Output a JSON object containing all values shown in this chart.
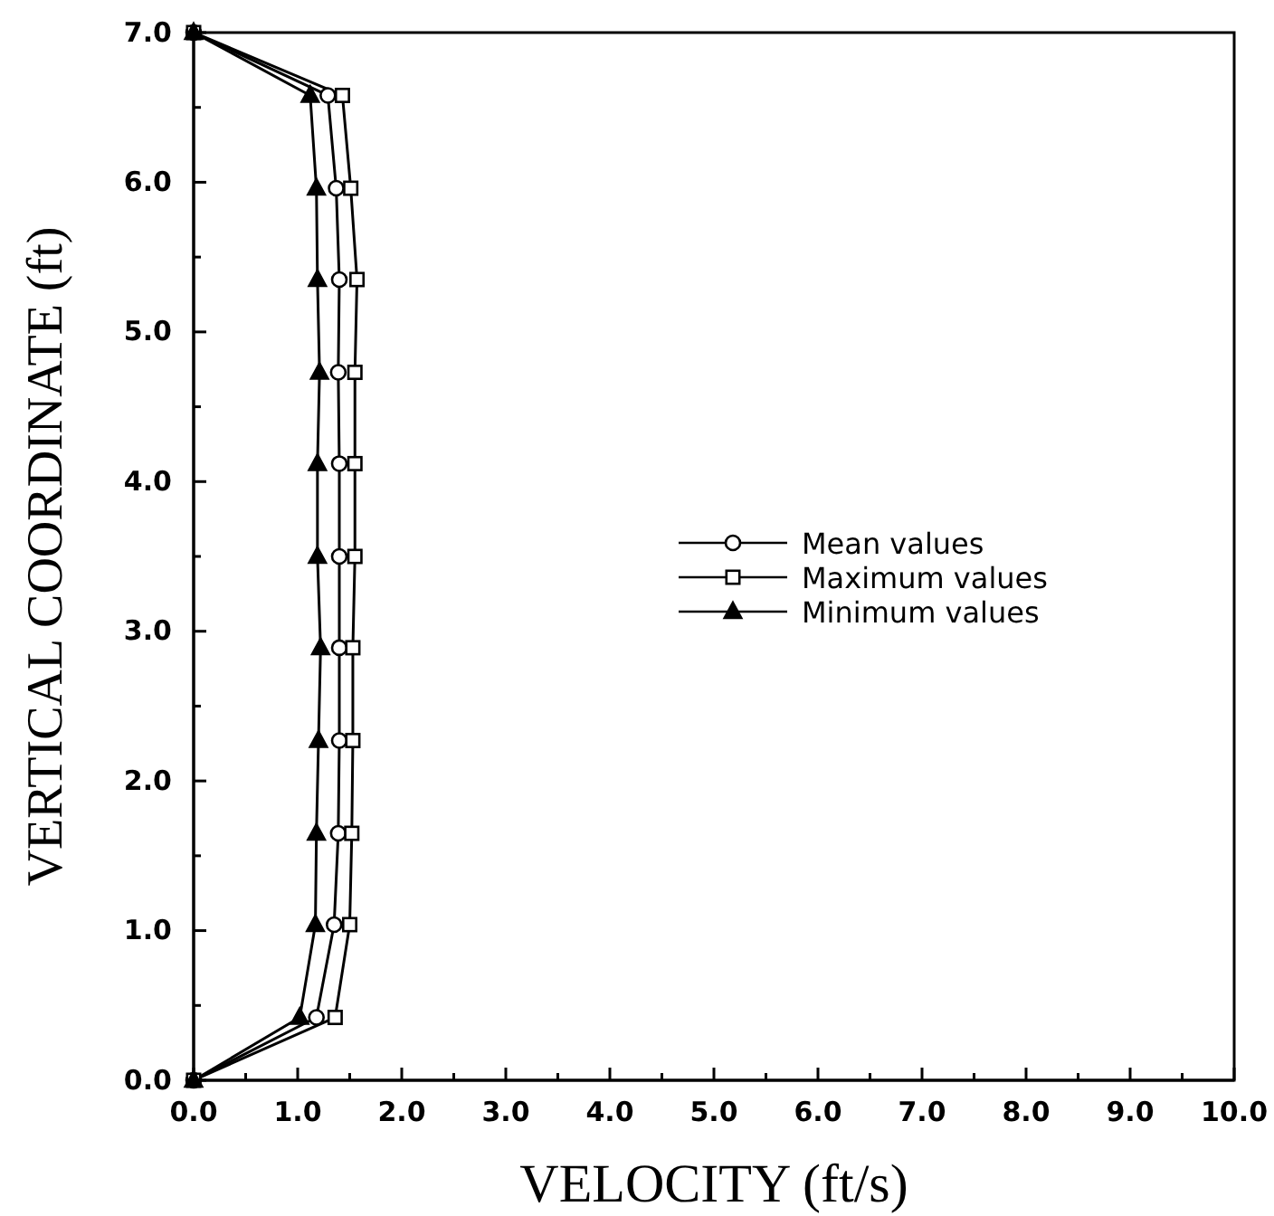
{
  "chart_data": {
    "type": "line",
    "xlabel": "VELOCITY  (ft/s)",
    "ylabel": "VERTICAL COORDINATE  (ft)",
    "xlim": [
      0,
      10
    ],
    "ylim": [
      0,
      7
    ],
    "xticks": [
      {
        "value": 0,
        "label": "0.0"
      },
      {
        "value": 0.5,
        "label": null
      },
      {
        "value": 1,
        "label": "1.0"
      },
      {
        "value": 1.5,
        "label": null
      },
      {
        "value": 2,
        "label": "2.0"
      },
      {
        "value": 2.5,
        "label": null
      },
      {
        "value": 3,
        "label": "3.0"
      },
      {
        "value": 3.5,
        "label": null
      },
      {
        "value": 4,
        "label": "4.0"
      },
      {
        "value": 4.5,
        "label": null
      },
      {
        "value": 5,
        "label": "5.0"
      },
      {
        "value": 5.5,
        "label": null
      },
      {
        "value": 6,
        "label": "6.0"
      },
      {
        "value": 6.5,
        "label": null
      },
      {
        "value": 7,
        "label": "7.0"
      },
      {
        "value": 7.5,
        "label": null
      },
      {
        "value": 8,
        "label": "8.0"
      },
      {
        "value": 8.5,
        "label": null
      },
      {
        "value": 9,
        "label": "9.0"
      },
      {
        "value": 9.5,
        "label": null
      },
      {
        "value": 10,
        "label": "10.0"
      }
    ],
    "yticks": [
      {
        "value": 0,
        "label": "0.0"
      },
      {
        "value": 0.5,
        "label": null
      },
      {
        "value": 1,
        "label": "1.0"
      },
      {
        "value": 1.5,
        "label": null
      },
      {
        "value": 2,
        "label": "2.0"
      },
      {
        "value": 2.5,
        "label": null
      },
      {
        "value": 3,
        "label": "3.0"
      },
      {
        "value": 3.5,
        "label": null
      },
      {
        "value": 4,
        "label": "4.0"
      },
      {
        "value": 4.5,
        "label": null
      },
      {
        "value": 5,
        "label": "5.0"
      },
      {
        "value": 5.5,
        "label": null
      },
      {
        "value": 6,
        "label": "6.0"
      },
      {
        "value": 6.5,
        "label": null
      },
      {
        "value": 7,
        "label": "7.0"
      }
    ],
    "grid": false,
    "legend": "right",
    "line_style": "solid",
    "series": [
      {
        "name": "Mean values",
        "color": "#000000",
        "marker": "circle",
        "x": [
          0,
          1.18,
          1.35,
          1.39,
          1.4,
          1.4,
          1.4,
          1.4,
          1.39,
          1.4,
          1.37,
          1.29,
          0
        ],
        "values": [
          0,
          0.42,
          1.04,
          1.65,
          2.27,
          2.89,
          3.5,
          4.12,
          4.73,
          5.35,
          5.96,
          6.58,
          7.0
        ]
      },
      {
        "name": "Maximum values",
        "color": "#000000",
        "marker": "square",
        "x": [
          0,
          1.36,
          1.5,
          1.52,
          1.53,
          1.53,
          1.55,
          1.55,
          1.55,
          1.57,
          1.51,
          1.43,
          0
        ],
        "values": [
          0,
          0.42,
          1.04,
          1.65,
          2.27,
          2.89,
          3.5,
          4.12,
          4.73,
          5.35,
          5.96,
          6.58,
          7.0
        ]
      },
      {
        "name": "Minimum values",
        "color": "#000000",
        "marker": "triangle",
        "x": [
          0,
          1.02,
          1.17,
          1.18,
          1.2,
          1.22,
          1.19,
          1.19,
          1.21,
          1.19,
          1.18,
          1.12,
          0
        ],
        "values": [
          0,
          0.42,
          1.04,
          1.65,
          2.27,
          2.89,
          3.5,
          4.12,
          4.73,
          5.35,
          5.96,
          6.58,
          7.0
        ]
      }
    ]
  }
}
